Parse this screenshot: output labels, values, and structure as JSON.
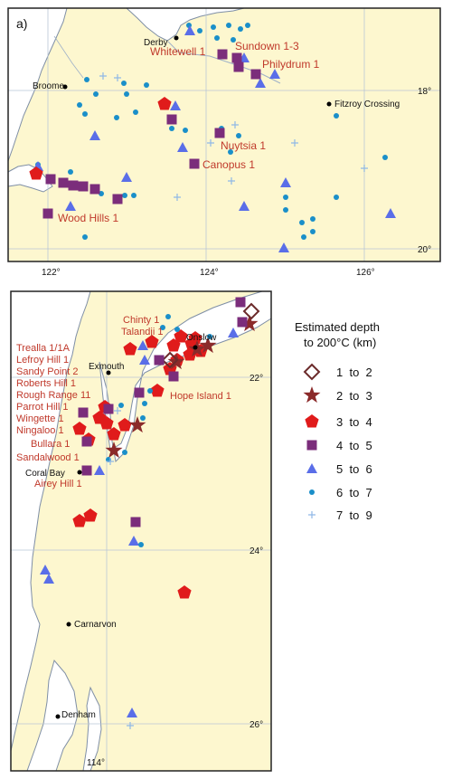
{
  "panel_a": {
    "label": "a)",
    "towns": [
      "Derby",
      "Broome",
      "Fitzroy Crossing"
    ],
    "wells": [
      "Sundown 1-3",
      "Whitewell 1",
      "Philydrum 1",
      "Nuytsia 1",
      "Canopus 1",
      "Wood Hills 1"
    ],
    "lon_ticks": [
      "122°",
      "124°",
      "126°"
    ],
    "lat_ticks": [
      "18°",
      "20°"
    ]
  },
  "panel_b": {
    "towns": [
      "Onslow",
      "Exmouth",
      "Coral Bay",
      "Carnarvon",
      "Denham"
    ],
    "wells": [
      "Chinty 1",
      "Talandji 1",
      "Trealla 1/1A",
      "Lefroy Hill 1",
      "Sandy Point 2",
      "Roberts Hill 1",
      "Rough Range 11",
      "Parrot Hill 1",
      "Wingette 1",
      "Hope Island 1",
      "Ningaloo 1",
      "Bullara 1",
      "Sandalwood 1",
      "Airey Hill 1"
    ],
    "lat_ticks": [
      "22°",
      "24°",
      "26°"
    ],
    "lon_ticks": [
      "114°"
    ]
  },
  "legend": {
    "title_line1": "Estimated depth",
    "title_line2": "to 200°C (km)",
    "items": [
      {
        "label": "1  to  2",
        "symbol": "diamond-open",
        "color": "#6b2b2b"
      },
      {
        "label": "2  to  3",
        "symbol": "star",
        "color": "#8b2a2a"
      },
      {
        "label": "3  to  4",
        "symbol": "pentagon",
        "color": "#e01b1b"
      },
      {
        "label": "4  to  5",
        "symbol": "square",
        "color": "#7b2d7b"
      },
      {
        "label": "5  to  6",
        "symbol": "triangle",
        "color": "#5a6ee8"
      },
      {
        "label": "6  to  7",
        "symbol": "circle",
        "color": "#1a8fc9"
      },
      {
        "label": "7  to  9",
        "symbol": "plus",
        "color": "#8fb8e6"
      }
    ]
  },
  "colors": {
    "land": "#fdf7cf",
    "sea": "#ffffff",
    "coast": "#7f8fa6",
    "grid": "#b9c6d6"
  }
}
